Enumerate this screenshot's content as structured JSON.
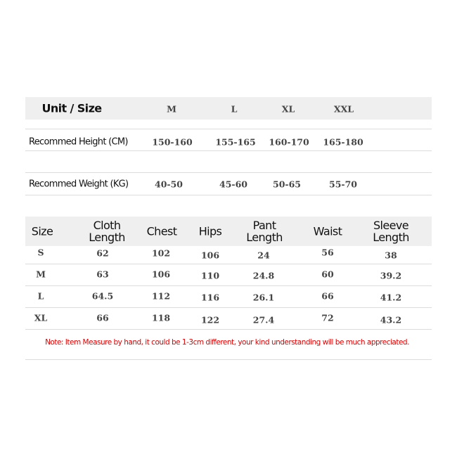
{
  "recommend_table": {
    "header_label": "Unit / Size",
    "sizes": [
      "M",
      "L",
      "XL",
      "XXL"
    ],
    "rows": [
      {
        "label": "Recommed Height (CM)",
        "values": [
          "150-160",
          "155-165",
          "160-170",
          "165-180"
        ]
      },
      {
        "label": "Recommed Weight (KG)",
        "values": [
          "40-50",
          "45-60",
          "50-65",
          "55-70"
        ]
      }
    ]
  },
  "measure_table": {
    "headers": [
      "Size",
      "Cloth\nLength",
      "Chest",
      "Hips",
      "Pant\nLength",
      "Waist",
      "Sleeve\nLength"
    ],
    "rows": [
      [
        "S",
        "62",
        "102",
        "106",
        "24",
        "56",
        "38"
      ],
      [
        "M",
        "63",
        "106",
        "110",
        "24.8",
        "60",
        "39.2"
      ],
      [
        "L",
        "64.5",
        "112",
        "116",
        "26.1",
        "66",
        "41.2"
      ],
      [
        "XL",
        "66",
        "118",
        "122",
        "27.4",
        "72",
        "43.2"
      ]
    ]
  },
  "note": "Note: Item Measure by hand, it could be 1-3cm different, your kind understanding will be much appreciated.",
  "colors": {
    "band": "#efefef",
    "note": "#dd0000"
  }
}
